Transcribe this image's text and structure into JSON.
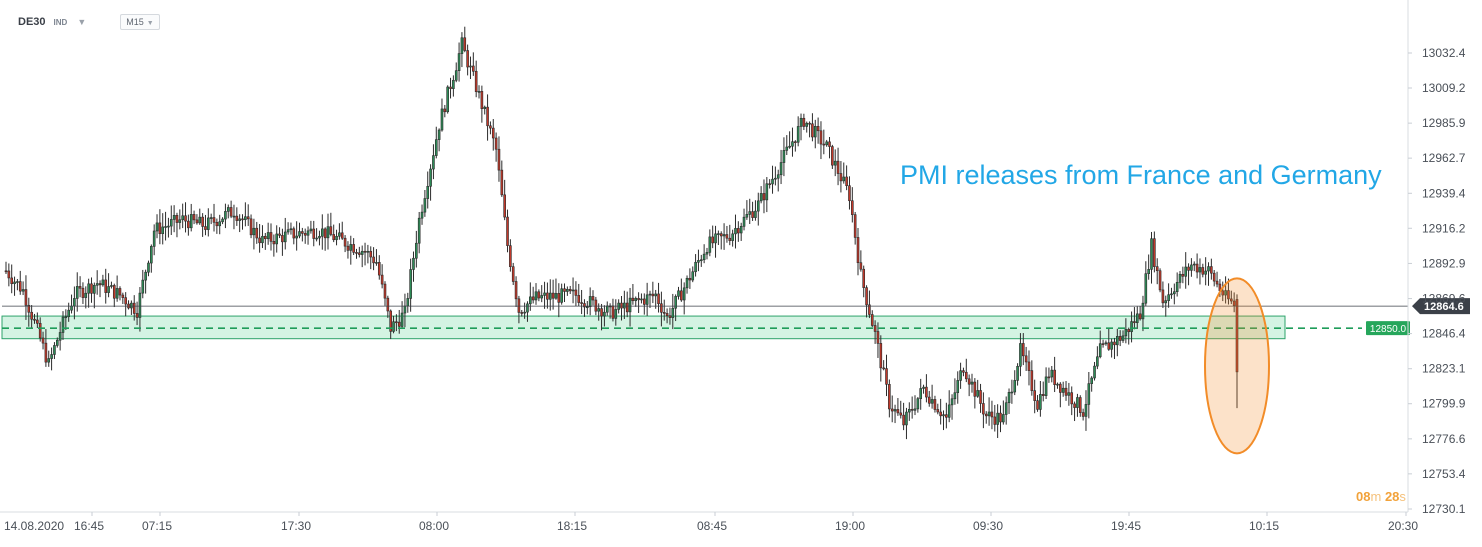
{
  "header": {
    "symbol": "DE30",
    "instrument_class": "IND",
    "timeframe": "M15"
  },
  "annotation": {
    "text": "PMI releases from France and Germany",
    "color": "#22a7e6"
  },
  "countdown": {
    "minutes": "08",
    "minutes_unit": "m",
    "seconds": "28",
    "seconds_unit": "s"
  },
  "colors": {
    "bull": "#2e8b57",
    "bear": "#c0392b",
    "wick": "#2b2b2b",
    "zone_fill": "#c6efd9",
    "zone_border": "#2ea36b",
    "highlight": "#f28c28",
    "price_tag": "#26a65b"
  },
  "chart_data": {
    "type": "candlestick",
    "instrument": "DE30",
    "timeframe": "M15",
    "y_axis": {
      "ticks": [
        13032.4,
        13009.2,
        12985.9,
        12962.7,
        12939.4,
        12916.2,
        12892.9,
        12869.6,
        12846.4,
        12823.1,
        12799.9,
        12776.6,
        12753.4,
        12730.1
      ],
      "tick_labels": [
        "13032.4",
        "13009.2",
        "12985.9",
        "12962.7",
        "12939.4",
        "12916.2",
        "12892.9",
        "12869.6",
        "12846.4",
        "12823.1",
        "12799.9",
        "12776.6",
        "12753.4",
        "12730.1"
      ],
      "range": [
        12722,
        13058
      ]
    },
    "x_axis": {
      "tick_labels": [
        "14.08.2020",
        "16:45",
        "07:15",
        "17:30",
        "08:00",
        "18:15",
        "08:45",
        "19:00",
        "09:30",
        "19:45",
        "10:15",
        "20:30"
      ]
    },
    "current_price": 12864.6,
    "current_price_label": "12864.6",
    "level": {
      "price": 12850.0,
      "label": "12850.0",
      "zone_low": 12843,
      "zone_high": 12858
    },
    "highlight": {
      "note": "last candle",
      "price_low": 12787,
      "price_high": 12871
    },
    "path_keypoints": [
      [
        0,
        12888
      ],
      [
        6,
        12875
      ],
      [
        12,
        12843
      ],
      [
        15,
        12826
      ],
      [
        19,
        12848
      ],
      [
        24,
        12872
      ],
      [
        32,
        12880
      ],
      [
        40,
        12872
      ],
      [
        46,
        12862
      ],
      [
        52,
        12915
      ],
      [
        62,
        12922
      ],
      [
        70,
        12918
      ],
      [
        80,
        12928
      ],
      [
        90,
        12908
      ],
      [
        100,
        12912
      ],
      [
        110,
        12915
      ],
      [
        120,
        12906
      ],
      [
        126,
        12901
      ],
      [
        130,
        12894
      ],
      [
        135,
        12850
      ],
      [
        140,
        12860
      ],
      [
        145,
        12922
      ],
      [
        152,
        12985
      ],
      [
        160,
        13038
      ],
      [
        165,
        13010
      ],
      [
        172,
        12968
      ],
      [
        176,
        12905
      ],
      [
        180,
        12862
      ],
      [
        186,
        12870
      ],
      [
        200,
        12872
      ],
      [
        212,
        12860
      ],
      [
        222,
        12868
      ],
      [
        228,
        12872
      ],
      [
        232,
        12857
      ],
      [
        236,
        12870
      ],
      [
        246,
        12905
      ],
      [
        254,
        12912
      ],
      [
        264,
        12932
      ],
      [
        272,
        12960
      ],
      [
        280,
        12988
      ],
      [
        288,
        12970
      ],
      [
        296,
        12938
      ],
      [
        300,
        12885
      ],
      [
        305,
        12846
      ],
      [
        310,
        12800
      ],
      [
        315,
        12787
      ],
      [
        322,
        12810
      ],
      [
        330,
        12790
      ],
      [
        336,
        12825
      ],
      [
        344,
        12792
      ],
      [
        350,
        12790
      ],
      [
        356,
        12835
      ],
      [
        362,
        12800
      ],
      [
        366,
        12820
      ],
      [
        372,
        12808
      ],
      [
        378,
        12795
      ],
      [
        384,
        12835
      ],
      [
        392,
        12845
      ],
      [
        398,
        12860
      ],
      [
        402,
        12905
      ],
      [
        406,
        12868
      ],
      [
        410,
        12878
      ],
      [
        416,
        12892
      ],
      [
        422,
        12888
      ],
      [
        428,
        12870
      ],
      [
        432,
        12864
      ]
    ]
  }
}
